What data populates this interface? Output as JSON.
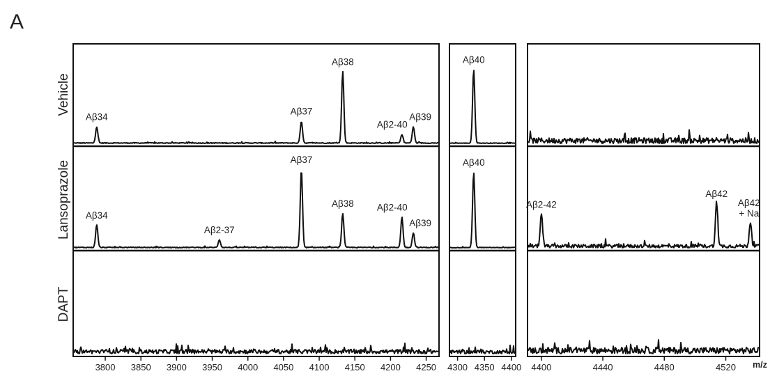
{
  "figure": {
    "panel_label": "A",
    "axis_unit": "m/z"
  },
  "colors": {
    "black": "#111111",
    "green": "#2e7d32",
    "blue": "#2a73b8",
    "red": "#e8532a"
  },
  "chart_data": {
    "type": "line",
    "description_rows": [
      "Vehicle",
      "Lansoprazole",
      "DAPT"
    ],
    "x_segments": [
      {
        "xlim": [
          3755,
          4268
        ],
        "ticks": [
          3800,
          3850,
          3900,
          3950,
          4000,
          4050,
          4100,
          4150,
          4200,
          4250
        ]
      },
      {
        "xlim": [
          4285,
          4408
        ],
        "ticks": [
          4300,
          4350,
          4400
        ]
      },
      {
        "xlim": [
          4391,
          4542
        ],
        "ticks": [
          4400,
          4440,
          4480,
          4520
        ]
      }
    ],
    "rows": [
      {
        "name": "Vehicle",
        "peaks": [
          {
            "segment": 0,
            "mz": 3788,
            "height": 0.17,
            "label": "Aβ34",
            "color": "black"
          },
          {
            "segment": 0,
            "mz": 4075,
            "height": 0.23,
            "label": "Aβ37",
            "color": "green"
          },
          {
            "segment": 0,
            "mz": 4133,
            "height": 0.75,
            "label": "Aβ38",
            "color": "blue"
          },
          {
            "segment": 0,
            "mz": 4216,
            "height": 0.09,
            "label": "Aβ2-40",
            "color": "black"
          },
          {
            "segment": 0,
            "mz": 4232,
            "height": 0.17,
            "label": "Aβ39",
            "color": "black"
          },
          {
            "segment": 1,
            "mz": 4330,
            "height": 0.77,
            "label": "Aβ40",
            "color": "black"
          }
        ]
      },
      {
        "name": "Lansoprazole",
        "peaks": [
          {
            "segment": 0,
            "mz": 3788,
            "height": 0.23,
            "label": "Aβ34",
            "color": "black"
          },
          {
            "segment": 0,
            "mz": 3960,
            "height": 0.08,
            "label": "Aβ2-37",
            "color": "black"
          },
          {
            "segment": 0,
            "mz": 4075,
            "height": 0.8,
            "label": "Aβ37",
            "color": "green"
          },
          {
            "segment": 0,
            "mz": 4133,
            "height": 0.35,
            "label": "Aβ38",
            "color": "blue"
          },
          {
            "segment": 0,
            "mz": 4216,
            "height": 0.31,
            "label": "Aβ2-40",
            "color": "black"
          },
          {
            "segment": 0,
            "mz": 4232,
            "height": 0.15,
            "label": "Aβ39",
            "color": "black"
          },
          {
            "segment": 1,
            "mz": 4330,
            "height": 0.77,
            "label": "Aβ40",
            "color": "black"
          },
          {
            "segment": 2,
            "mz": 4400,
            "height": 0.34,
            "label": "Aβ2-42",
            "color": "black"
          },
          {
            "segment": 2,
            "mz": 4514,
            "height": 0.45,
            "label": "Aβ42",
            "color": "red"
          },
          {
            "segment": 2,
            "mz": 4536,
            "height": 0.25,
            "label": "Aβ42\n+ Na",
            "color": "black"
          }
        ]
      },
      {
        "name": "DAPT",
        "peaks": []
      }
    ]
  }
}
